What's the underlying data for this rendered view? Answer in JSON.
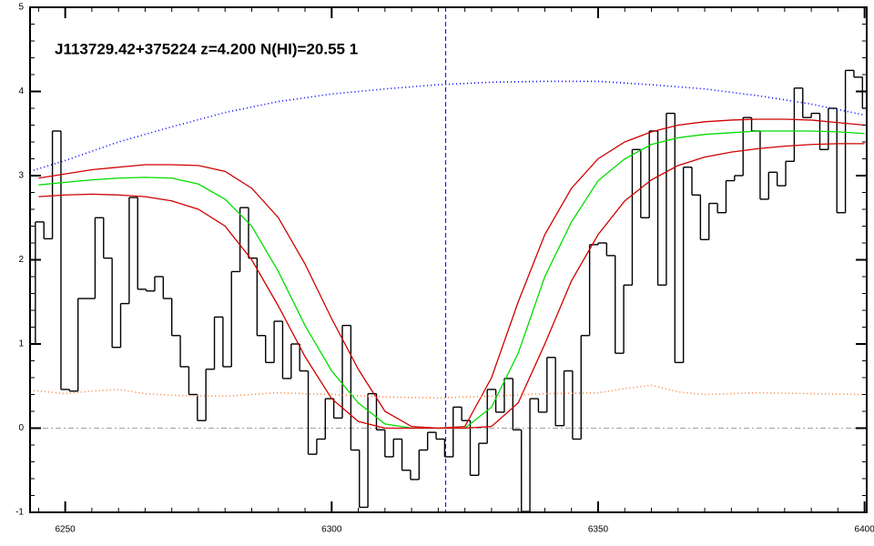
{
  "chart_data": {
    "type": "line",
    "title": "J113729.42+375224 z=4.200 N(HI)=20.55 1",
    "xlim": [
      6243.4,
      6400.4
    ],
    "ylim": [
      -1,
      5
    ],
    "xticks": [
      6250,
      6300,
      6350,
      6400
    ],
    "yticks": [
      -1,
      0,
      1,
      2,
      3,
      4,
      5
    ],
    "xminor_step": 5,
    "yminor_step": 0.2,
    "reference_x": 6321.4,
    "reference_x_color": "#0000ff",
    "zero_line_color": "#a0a0a0",
    "series": [
      {
        "style": "step",
        "color": "#000000",
        "x": [
          6243.6,
          6245.2,
          6246.8,
          6248.4,
          6250,
          6251.6,
          6253.2,
          6254.8,
          6256.4,
          6258,
          6259.6,
          6261.2,
          6262.8,
          6264.4,
          6266,
          6267.6,
          6269.2,
          6270.8,
          6272.4,
          6274,
          6275.6,
          6277.2,
          6278.8,
          6280.4,
          6282,
          6283.6,
          6285.2,
          6286.8,
          6288.4,
          6290,
          6291.6,
          6293.2,
          6294.8,
          6296.4,
          6298,
          6299.6,
          6301.2,
          6302.8,
          6304.4,
          6306,
          6307.6,
          6309.2,
          6310.8,
          6312.4,
          6314,
          6315.6,
          6317.2,
          6318.8,
          6320.4,
          6322,
          6323.6,
          6325.2,
          6326.8,
          6328.4,
          6330,
          6331.6,
          6333.2,
          6334.8,
          6336.4,
          6338,
          6339.6,
          6341.2,
          6342.8,
          6344.4,
          6346,
          6347.6,
          6349.2,
          6350.8,
          6352.4,
          6354,
          6355.6,
          6357.2,
          6358.8,
          6360.4,
          6362,
          6363.6,
          6365.2,
          6366.8,
          6368.4,
          6370,
          6371.6,
          6373.2,
          6374.8,
          6376.4,
          6378,
          6379.6,
          6381.2,
          6382.8,
          6384.4,
          6386,
          6387.6,
          6389.2,
          6390.8,
          6392.4,
          6394,
          6395.6,
          6397.2,
          6398.8,
          6400.4
        ],
        "values": [
          1.0,
          2.45,
          2.25,
          3.53,
          0.46,
          0.44,
          1.54,
          1.54,
          2.5,
          2.02,
          0.96,
          1.48,
          2.74,
          1.65,
          1.63,
          1.8,
          1.54,
          1.1,
          0.73,
          0.4,
          0.09,
          0.7,
          1.32,
          0.73,
          1.86,
          2.62,
          2.02,
          1.1,
          0.78,
          1.27,
          0.59,
          1.0,
          0.68,
          -0.31,
          -0.13,
          0.35,
          0.12,
          1.22,
          -0.26,
          -0.94,
          0.41,
          -0.02,
          -0.34,
          -0.13,
          -0.5,
          -0.61,
          -0.26,
          -0.05,
          -0.13,
          -0.34,
          0.25,
          0.09,
          -0.56,
          -0.18,
          0.46,
          0.19,
          0.59,
          -0.02,
          -0.99,
          0.35,
          0.19,
          0.84,
          0.03,
          0.68,
          -0.13,
          1.1,
          2.18,
          2.2,
          2.05,
          0.89,
          1.7,
          3.31,
          2.5,
          3.53,
          1.7,
          3.74,
          0.78,
          3.1,
          2.77,
          2.24,
          2.67,
          2.56,
          2.94,
          3.0,
          3.69,
          3.53,
          2.72,
          3.04,
          2.88,
          3.17,
          4.04,
          3.69,
          3.74,
          3.31,
          3.8,
          2.56,
          4.25,
          4.17,
          3.8
        ]
      },
      {
        "style": "solid",
        "color": "#00dd00",
        "x": [
          6245,
          6250,
          6255,
          6260,
          6265,
          6270,
          6275,
          6280,
          6285,
          6290,
          6295,
          6300,
          6305,
          6310,
          6315,
          6320,
          6325,
          6330,
          6335,
          6340,
          6345,
          6350,
          6355,
          6360,
          6365,
          6370,
          6375,
          6380,
          6385,
          6390,
          6395,
          6400
        ],
        "values": [
          2.89,
          2.92,
          2.95,
          2.97,
          2.98,
          2.97,
          2.9,
          2.72,
          2.4,
          1.86,
          1.22,
          0.68,
          0.3,
          0.05,
          0,
          0,
          0,
          0.25,
          0.89,
          1.8,
          2.45,
          2.94,
          3.2,
          3.37,
          3.45,
          3.49,
          3.51,
          3.53,
          3.53,
          3.53,
          3.52,
          3.5
        ]
      },
      {
        "style": "solid",
        "color": "#d00000",
        "x": [
          6245,
          6250,
          6255,
          6260,
          6265,
          6270,
          6275,
          6280,
          6285,
          6290,
          6295,
          6300,
          6305,
          6310,
          6315,
          6320,
          6325,
          6330,
          6335,
          6340,
          6345,
          6350,
          6355,
          6360,
          6365,
          6370,
          6375,
          6380,
          6385,
          6390,
          6395,
          6400
        ],
        "values": [
          2.97,
          3.02,
          3.07,
          3.1,
          3.13,
          3.13,
          3.12,
          3.05,
          2.85,
          2.5,
          1.95,
          1.3,
          0.7,
          0.2,
          0.02,
          0,
          0.02,
          0.6,
          1.5,
          2.3,
          2.85,
          3.2,
          3.4,
          3.52,
          3.6,
          3.64,
          3.66,
          3.67,
          3.67,
          3.66,
          3.63,
          3.6
        ]
      },
      {
        "style": "solid",
        "color": "#d00000",
        "x": [
          6245,
          6250,
          6255,
          6260,
          6265,
          6270,
          6275,
          6280,
          6285,
          6290,
          6295,
          6300,
          6305,
          6310,
          6315,
          6320,
          6325,
          6330,
          6335,
          6340,
          6345,
          6350,
          6355,
          6360,
          6365,
          6370,
          6375,
          6380,
          6385,
          6390,
          6395,
          6400
        ],
        "values": [
          2.75,
          2.77,
          2.78,
          2.77,
          2.75,
          2.7,
          2.6,
          2.4,
          2.0,
          1.45,
          0.85,
          0.35,
          0.08,
          0,
          0,
          0,
          0,
          0.02,
          0.3,
          1.0,
          1.75,
          2.3,
          2.7,
          2.95,
          3.12,
          3.22,
          3.28,
          3.32,
          3.35,
          3.37,
          3.38,
          3.38
        ]
      },
      {
        "style": "dotted",
        "color": "#0000ff",
        "x": [
          6243.4,
          6250,
          6260,
          6270,
          6280,
          6290,
          6300,
          6310,
          6320,
          6330,
          6340,
          6350,
          6360,
          6370,
          6380,
          6390,
          6400
        ],
        "values": [
          3.05,
          3.18,
          3.4,
          3.58,
          3.75,
          3.88,
          3.97,
          4.03,
          4.08,
          4.11,
          4.12,
          4.12,
          4.08,
          4.03,
          3.95,
          3.85,
          3.72
        ]
      },
      {
        "style": "dotted",
        "color": "#ff8040",
        "x": [
          6243.4,
          6250,
          6255,
          6260,
          6265,
          6270,
          6280,
          6290,
          6300,
          6310,
          6320,
          6330,
          6340,
          6350,
          6355,
          6360,
          6365,
          6370,
          6380,
          6390,
          6400
        ],
        "values": [
          0.45,
          0.41,
          0.44,
          0.46,
          0.41,
          0.39,
          0.38,
          0.42,
          0.4,
          0.37,
          0.36,
          0.38,
          0.41,
          0.42,
          0.47,
          0.51,
          0.43,
          0.4,
          0.42,
          0.41,
          0.4
        ]
      }
    ]
  }
}
